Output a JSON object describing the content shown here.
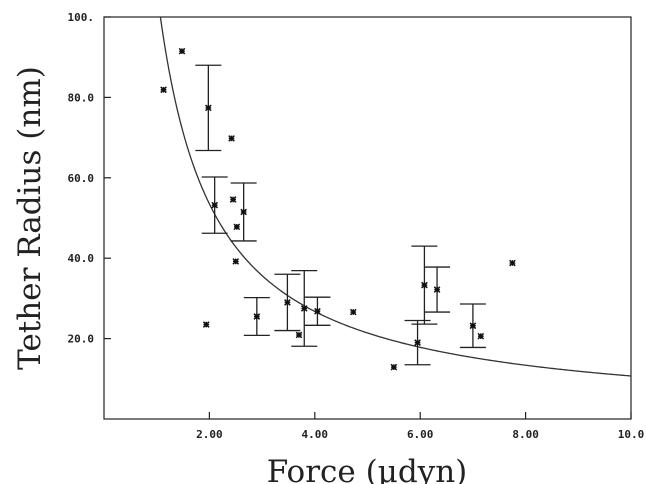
{
  "chart_data": {
    "type": "scatter",
    "title": "",
    "xlabel": "Force (μdyn)",
    "ylabel": "Tether Radius (nm)",
    "xlim": [
      0,
      10
    ],
    "ylim": [
      0,
      100
    ],
    "x_ticks": [
      2,
      4,
      6,
      8,
      10
    ],
    "x_tick_labels": [
      "2.00",
      "4.00",
      "6.00",
      "8.00",
      "10.0"
    ],
    "y_ticks": [
      20,
      40,
      60,
      80,
      100
    ],
    "y_tick_labels": [
      "20.0",
      "40.0",
      "60.0",
      "80.0",
      "100."
    ],
    "grid": false,
    "series": [
      {
        "marker": "asterisk",
        "points": [
          {
            "x": 1.13,
            "y": 81.9
          },
          {
            "x": 1.48,
            "y": 91.5
          },
          {
            "x": 1.98,
            "y": 77.4,
            "err": 10.6
          },
          {
            "x": 1.94,
            "y": 23.5
          },
          {
            "x": 2.1,
            "y": 53.2,
            "err": 7.0
          },
          {
            "x": 2.42,
            "y": 69.8
          },
          {
            "x": 2.45,
            "y": 54.6
          },
          {
            "x": 2.52,
            "y": 47.8
          },
          {
            "x": 2.5,
            "y": 39.2
          },
          {
            "x": 2.65,
            "y": 51.5,
            "err": 7.2
          },
          {
            "x": 2.9,
            "y": 25.5,
            "err": 4.7
          },
          {
            "x": 3.48,
            "y": 29.0,
            "err": 7.0
          },
          {
            "x": 3.7,
            "y": 20.9
          },
          {
            "x": 3.8,
            "y": 27.5,
            "err": 9.4
          },
          {
            "x": 4.05,
            "y": 26.8,
            "err": 3.5
          },
          {
            "x": 4.73,
            "y": 26.6
          },
          {
            "x": 5.5,
            "y": 12.9
          },
          {
            "x": 5.95,
            "y": 19.0,
            "err": 5.5
          },
          {
            "x": 6.08,
            "y": 33.3,
            "err": 9.7
          },
          {
            "x": 6.32,
            "y": 32.2,
            "err": 5.6
          },
          {
            "x": 7.0,
            "y": 23.2,
            "err": 5.4
          },
          {
            "x": 7.15,
            "y": 20.6
          },
          {
            "x": 7.75,
            "y": 38.8
          }
        ]
      }
    ],
    "fit_curve": {
      "type": "y = k / x",
      "k": 107,
      "x_range": [
        1.05,
        10
      ]
    }
  }
}
